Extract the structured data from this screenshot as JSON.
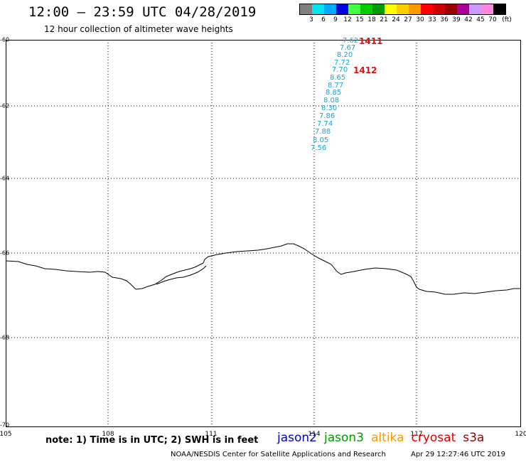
{
  "header": {
    "title": "12:00 – 23:59 UTC 04/28/2019",
    "subtitle": "12 hour collection of altimeter wave heights"
  },
  "scale": {
    "colors": [
      "#7f7f7f",
      "#00e5f0",
      "#00aaff",
      "#0000e0",
      "#44ff44",
      "#00cc00",
      "#009900",
      "#ffff00",
      "#ffcc00",
      "#ff9900",
      "#ff0000",
      "#cc0000",
      "#990000",
      "#aa0099",
      "#cc99ff",
      "#ff88dd",
      "#000000"
    ],
    "labels": [
      "3",
      "6",
      "9",
      "12",
      "15",
      "18",
      "21",
      "24",
      "27",
      "30",
      "33",
      "36",
      "39",
      "42",
      "45",
      "70",
      "(ft)"
    ]
  },
  "axes": {
    "y_labels": [
      "-60",
      "-62",
      "-64",
      "-66",
      "-68",
      "-70"
    ],
    "x_labels": [
      "105",
      "108",
      "111",
      "114",
      "117",
      "120"
    ]
  },
  "wave_heights": [
    "7.62",
    "7.67",
    "8.20",
    "7.72",
    "7.70",
    "8.65",
    "8.77",
    "8.85",
    "8.08",
    "8.30",
    "7.86",
    "7.74",
    "7.88",
    "8.05",
    "7.56"
  ],
  "pass_labels": [
    "1411",
    "1412"
  ],
  "footer": {
    "note": "note:  1) Time is in UTC;  2) SWH is in feet",
    "credit": "NOAA/NESDIS Center for Satellite Applications and Research",
    "timestamp": "Apr 29 12:27:46 UTC 2019"
  },
  "satellites": [
    {
      "name": "jason2",
      "color": "#0000cc"
    },
    {
      "name": "jason3",
      "color": "#009900"
    },
    {
      "name": "altika",
      "color": "#ff9900"
    },
    {
      "name": "cryosat",
      "color": "#dd0000"
    },
    {
      "name": "s3a",
      "color": "#990000"
    }
  ]
}
